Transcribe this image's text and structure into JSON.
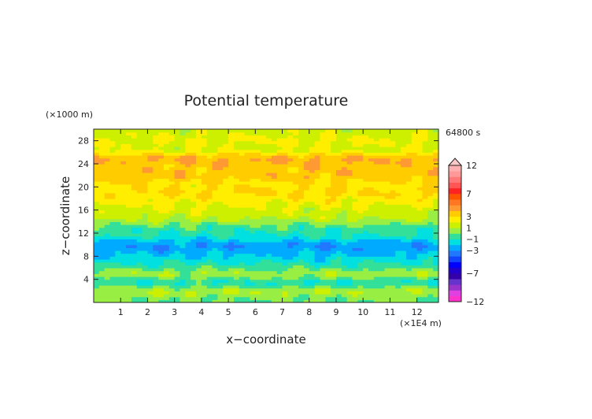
{
  "chart_data": {
    "type": "heatmap",
    "title": "Potential temperature",
    "xlabel": "x−coordinate",
    "ylabel": "z−coordinate",
    "x_unit": "(×1E4 m)",
    "y_unit": "(×1000 m)",
    "time_label": "64800 s",
    "xlim": [
      0,
      12.8
    ],
    "ylim": [
      0,
      30
    ],
    "x_ticks": [
      "1",
      "2",
      "3",
      "4",
      "5",
      "6",
      "7",
      "8",
      "9",
      "10",
      "11",
      "12"
    ],
    "y_ticks": [
      "4",
      "8",
      "12",
      "16",
      "20",
      "24",
      "28"
    ],
    "levels": [
      -12,
      -11,
      -10,
      -9,
      -8,
      -7,
      -6,
      -5,
      -4,
      -3,
      -2,
      -1,
      0,
      1,
      2,
      3,
      4,
      5,
      6,
      7,
      8,
      9,
      10,
      11,
      12
    ],
    "colorbar_labels": [
      "12",
      "7",
      "3",
      "1",
      "−1",
      "−3",
      "−7",
      "−12"
    ],
    "colorbar_colors": [
      "#ff33cc",
      "#e040e0",
      "#9933cc",
      "#6633cc",
      "#3300aa",
      "#2200cc",
      "#0000ff",
      "#1144ff",
      "#2277ff",
      "#00aaff",
      "#00e0e0",
      "#33e099",
      "#99ee44",
      "#ccf000",
      "#ffee00",
      "#ffcc00",
      "#ff9933",
      "#ff7722",
      "#ff5500",
      "#ff2222",
      "#ff5555",
      "#ff7777",
      "#ff9999",
      "#ffb0b0",
      "#ffc8c8"
    ],
    "z_profile": [
      {
        "z": 0.5,
        "value": -0.5
      },
      {
        "z": 2.0,
        "value": 0.5
      },
      {
        "z": 3.5,
        "value": -1.6
      },
      {
        "z": 5.0,
        "value": 0.4
      },
      {
        "z": 6.0,
        "value": -0.8
      },
      {
        "z": 7.5,
        "value": -2.0
      },
      {
        "z": 9.0,
        "value": -3.0
      },
      {
        "z": 10.0,
        "value": -3.4
      },
      {
        "z": 11.5,
        "value": -1.6
      },
      {
        "z": 13.0,
        "value": -1.0
      },
      {
        "z": 14.5,
        "value": 0.6
      },
      {
        "z": 16.0,
        "value": 1.2
      },
      {
        "z": 17.5,
        "value": 1.8
      },
      {
        "z": 19.0,
        "value": 2.6
      },
      {
        "z": 20.5,
        "value": 2.2
      },
      {
        "z": 22.0,
        "value": 3.2
      },
      {
        "z": 23.5,
        "value": 3.0
      },
      {
        "z": 25.0,
        "value": 3.6
      },
      {
        "z": 26.5,
        "value": 1.2
      },
      {
        "z": 28.0,
        "value": 1.6
      },
      {
        "z": 30.0,
        "value": 1.0
      }
    ]
  }
}
